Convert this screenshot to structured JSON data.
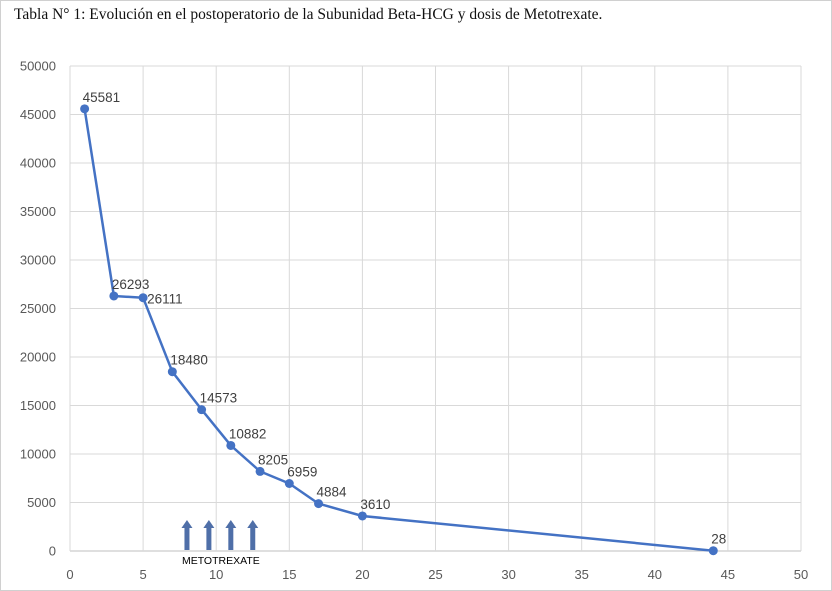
{
  "chart_data": {
    "type": "line",
    "title": "Tabla N° 1: Evolución en el postoperatorio de la Subunidad Beta-HCG y dosis de Metotrexate.",
    "xlabel": "",
    "ylabel": "",
    "xlim": [
      0,
      50
    ],
    "ylim": [
      0,
      50000
    ],
    "xticks": [
      0,
      5,
      10,
      15,
      20,
      25,
      30,
      35,
      40,
      45,
      50
    ],
    "yticks": [
      0,
      5000,
      10000,
      15000,
      20000,
      25000,
      30000,
      35000,
      40000,
      45000,
      50000
    ],
    "grid": true,
    "series": [
      {
        "name": "Beta-HCG",
        "x": [
          1,
          3,
          5,
          7,
          9,
          11,
          13,
          15,
          17,
          20,
          44
        ],
        "values": [
          45581,
          26293,
          26111,
          18480,
          14573,
          10882,
          8205,
          6959,
          4884,
          3610,
          28
        ],
        "color": "#4472c4"
      }
    ],
    "data_labels": [
      "45581",
      "26293",
      "26111",
      "18480",
      "14573",
      "10882",
      "8205",
      "6959",
      "4884",
      "3610",
      "28"
    ],
    "annotation": {
      "text": "METOTREXATE",
      "dose_days": [
        8,
        9.5,
        11,
        12.5
      ],
      "color": "#4f6fa8"
    }
  }
}
